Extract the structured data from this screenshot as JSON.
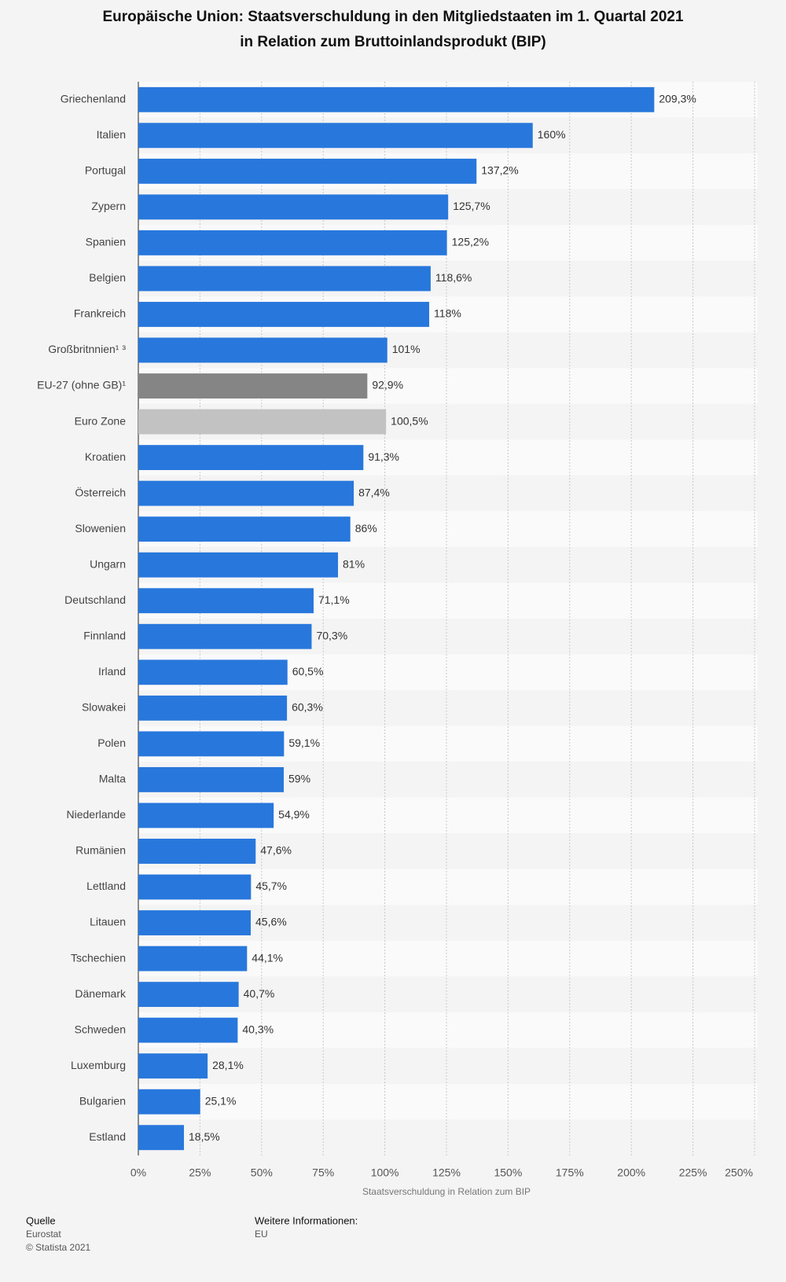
{
  "chart_data": {
    "type": "hbar",
    "title": "Europäische Union: Staatsverschuldung in den Mitgliedstaaten im 1. Quartal 2021 in Relation zum Bruttoinlandsprodukt (BIP)",
    "x_label": "Staatsverschuldung in Relation zum BIP",
    "categories": [
      "Griechenland",
      "Italien",
      "Portugal",
      "Zypern",
      "Spanien",
      "Belgien",
      "Frankreich",
      "Großbritnnien¹ ³",
      "EU-27 (ohne GB)¹",
      "Euro Zone",
      "Kroatien",
      "Österreich",
      "Slowenien",
      "Ungarn",
      "Deutschland",
      "Finnland",
      "Irland",
      "Slowakei",
      "Polen",
      "Malta",
      "Niederlande",
      "Rumänien",
      "Lettland",
      "Litauen",
      "Tschechien",
      "Dänemark",
      "Schweden",
      "Luxemburg",
      "Bulgarien",
      "Estland"
    ],
    "values": [
      209.3,
      160,
      137.2,
      125.7,
      125.2,
      118.6,
      118,
      101,
      92.9,
      100.5,
      91.3,
      87.4,
      86,
      81,
      71.1,
      70.3,
      60.5,
      60.3,
      59.1,
      59,
      54.9,
      47.6,
      45.7,
      45.6,
      44.1,
      40.7,
      40.3,
      28.1,
      25.1,
      18.5
    ],
    "value_labels": [
      "209,3%",
      "160%",
      "137,2%",
      "125,7%",
      "125,2%",
      "118,6%",
      "118%",
      "101%",
      "92,9%",
      "100,5%",
      "91,3%",
      "87,4%",
      "86%",
      "81%",
      "71,1%",
      "70,3%",
      "60,5%",
      "60,3%",
      "59,1%",
      "59%",
      "54,9%",
      "47,6%",
      "45,7%",
      "45,6%",
      "44,1%",
      "40,7%",
      "40,3%",
      "28,1%",
      "25,1%",
      "18,5%"
    ],
    "colors": [
      "#2877dd",
      "#2877dd",
      "#2877dd",
      "#2877dd",
      "#2877dd",
      "#2877dd",
      "#2877dd",
      "#2877dd",
      "#858585",
      "#c2c2c2",
      "#2877dd",
      "#2877dd",
      "#2877dd",
      "#2877dd",
      "#2877dd",
      "#2877dd",
      "#2877dd",
      "#2877dd",
      "#2877dd",
      "#2877dd",
      "#2877dd",
      "#2877dd",
      "#2877dd",
      "#2877dd",
      "#2877dd",
      "#2877dd",
      "#2877dd",
      "#2877dd",
      "#2877dd",
      "#2877dd"
    ],
    "xlim": [
      0,
      250
    ],
    "xticks": [
      {
        "value": 0,
        "label": "0%"
      },
      {
        "value": 25,
        "label": "25%"
      },
      {
        "value": 50,
        "label": "50%"
      },
      {
        "value": 75,
        "label": "75%"
      },
      {
        "value": 100,
        "label": "100%"
      },
      {
        "value": 125,
        "label": "125%"
      },
      {
        "value": 150,
        "label": "150%"
      },
      {
        "value": 175,
        "label": "175%"
      },
      {
        "value": 200,
        "label": "200%"
      },
      {
        "value": 225,
        "label": "225%"
      },
      {
        "value": 250,
        "label": "250%"
      }
    ],
    "grid": true
  },
  "footer": {
    "source_label": "Quelle",
    "source": "Eurostat",
    "copyright": "© Statista 2021",
    "info_label": "Weitere Informationen:",
    "info": "EU"
  }
}
